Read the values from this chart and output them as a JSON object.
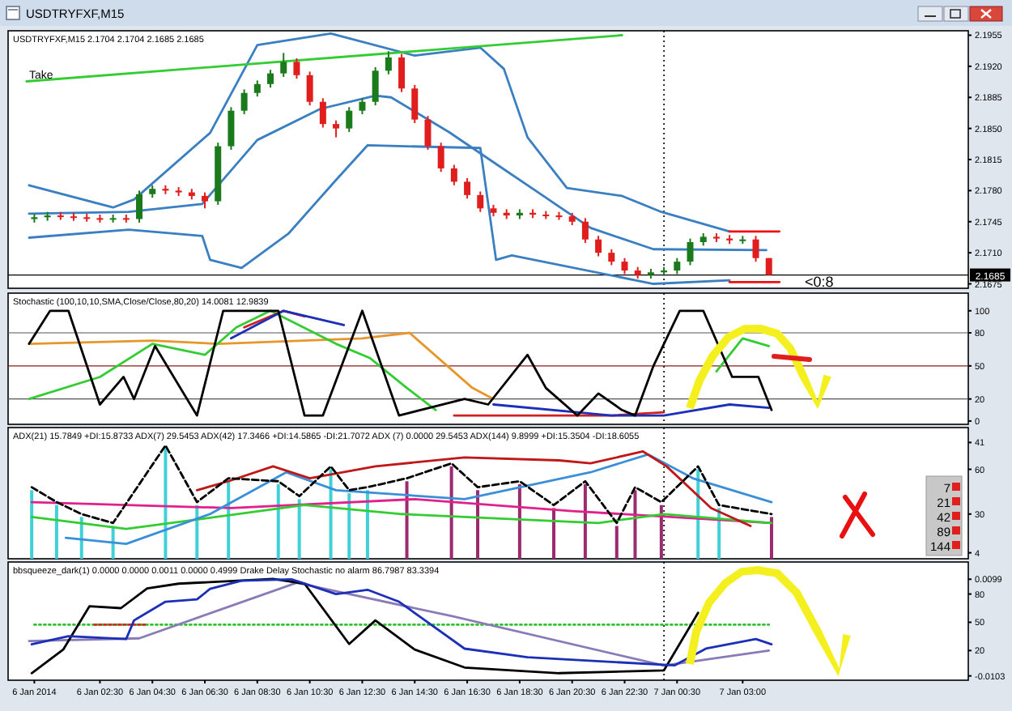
{
  "chart_data": [
    {
      "type": "candlestick",
      "title": "USDTRYFXF,M15",
      "subtitle": "USDTRYFXF,M15  2.1704 2.1704 2.1685 2.1685",
      "xlim": [
        "2014-01-05T23:00",
        "2014-01-07T11:36"
      ],
      "ylim": [
        2.167,
        2.196
      ],
      "tick_labels": "y",
      "yticks": [
        2.1955,
        {
          "value": 2.192,
          "label": "2.1920"
        },
        2.1885,
        {
          "value": 2.185,
          "label": "2.1850"
        },
        2.1815,
        {
          "value": 2.178,
          "label": "2.1780"
        },
        2.1745,
        {
          "value": 2.171,
          "label": "2.1710"
        },
        2.1675
      ],
      "x": [
        "2014-01-06T00:00",
        "2014-01-06T00:30",
        "2014-01-06T01:00",
        "2014-01-06T01:30",
        "2014-01-06T02:00",
        "2014-01-06T02:30",
        "2014-01-06T03:00",
        "2014-01-06T03:30",
        "2014-01-06T04:00",
        "2014-01-06T04:30",
        "2014-01-06T05:00",
        "2014-01-06T05:30",
        "2014-01-06T06:00",
        "2014-01-06T06:30",
        "2014-01-06T07:00",
        "2014-01-06T07:30",
        "2014-01-06T08:00",
        "2014-01-06T08:30",
        "2014-01-06T09:00",
        "2014-01-06T09:30",
        "2014-01-06T10:00",
        "2014-01-06T10:30",
        "2014-01-06T11:00",
        "2014-01-06T11:30",
        "2014-01-06T12:00",
        "2014-01-06T12:30",
        "2014-01-06T13:00",
        "2014-01-06T13:30",
        "2014-01-06T14:00",
        "2014-01-06T14:30",
        "2014-01-06T15:00",
        "2014-01-06T15:30",
        "2014-01-06T16:00",
        "2014-01-06T16:30",
        "2014-01-06T17:00",
        "2014-01-06T17:30",
        "2014-01-06T18:00",
        "2014-01-06T18:30",
        "2014-01-06T19:00",
        "2014-01-06T19:30",
        "2014-01-06T20:00",
        "2014-01-06T20:30",
        "2014-01-06T21:00",
        "2014-01-06T21:30",
        "2014-01-06T22:00",
        "2014-01-06T22:30",
        "2014-01-06T23:00",
        "2014-01-06T23:30",
        "2014-01-07T00:00",
        "2014-01-07T00:30",
        "2014-01-07T01:00",
        "2014-01-07T01:30",
        "2014-01-07T02:00",
        "2014-01-07T02:30",
        "2014-01-07T03:00",
        "2014-01-07T03:30",
        "2014-01-07T04:00"
      ],
      "ohlc": [
        [
          2.1748,
          2.1754,
          2.1744,
          2.175
        ],
        [
          2.175,
          2.1756,
          2.1746,
          2.1752
        ],
        [
          2.1752,
          2.1756,
          2.1747,
          2.1751
        ],
        [
          2.1751,
          2.1755,
          2.1746,
          2.175
        ],
        [
          2.175,
          2.1754,
          2.1745,
          2.1749
        ],
        [
          2.1749,
          2.1753,
          2.1744,
          2.1748
        ],
        [
          2.1748,
          2.1753,
          2.1744,
          2.1749
        ],
        [
          2.1749,
          2.1753,
          2.1744,
          2.1748
        ],
        [
          2.1748,
          2.178,
          2.1744,
          2.1776
        ],
        [
          2.1776,
          2.1786,
          2.1772,
          2.1782
        ],
        [
          2.1782,
          2.1786,
          2.1776,
          2.178
        ],
        [
          2.178,
          2.1784,
          2.1774,
          2.1778
        ],
        [
          2.1778,
          2.1782,
          2.177,
          2.1774
        ],
        [
          2.1774,
          2.1778,
          2.176,
          2.1768
        ],
        [
          2.1768,
          2.1834,
          2.1764,
          2.183
        ],
        [
          2.183,
          2.1874,
          2.1826,
          2.187
        ],
        [
          2.187,
          2.1894,
          2.1866,
          2.189
        ],
        [
          2.189,
          2.1904,
          2.1886,
          2.19
        ],
        [
          2.19,
          2.1916,
          2.1896,
          2.1912
        ],
        [
          2.1912,
          2.1935,
          2.1908,
          2.1925
        ],
        [
          2.1925,
          2.1929,
          2.1906,
          2.191
        ],
        [
          2.191,
          2.1914,
          2.1876,
          2.188
        ],
        [
          2.188,
          2.1884,
          2.1851,
          2.1855
        ],
        [
          2.1855,
          2.1859,
          2.184,
          2.185
        ],
        [
          2.185,
          2.1874,
          2.1846,
          2.187
        ],
        [
          2.187,
          2.1884,
          2.1866,
          2.188
        ],
        [
          2.188,
          2.1919,
          2.1876,
          2.1915
        ],
        [
          2.1915,
          2.1937,
          2.1911,
          2.193
        ],
        [
          2.193,
          2.1934,
          2.1891,
          2.1895
        ],
        [
          2.1895,
          2.1899,
          2.1856,
          2.186
        ],
        [
          2.186,
          2.1864,
          2.1826,
          2.183
        ],
        [
          2.183,
          2.1834,
          2.1801,
          2.1805
        ],
        [
          2.1805,
          2.1809,
          2.1786,
          2.179
        ],
        [
          2.179,
          2.1794,
          2.1771,
          2.1775
        ],
        [
          2.1775,
          2.1779,
          2.1756,
          2.176
        ],
        [
          2.176,
          2.1764,
          2.1751,
          2.1755
        ],
        [
          2.1755,
          2.1759,
          2.1748,
          2.1752
        ],
        [
          2.1752,
          2.1759,
          2.1748,
          2.1755
        ],
        [
          2.1755,
          2.1759,
          2.1749,
          2.1753
        ],
        [
          2.1753,
          2.1757,
          2.1748,
          2.1752
        ],
        [
          2.1752,
          2.1756,
          2.1747,
          2.1751
        ],
        [
          2.1751,
          2.1755,
          2.1741,
          2.1745
        ],
        [
          2.1745,
          2.1749,
          2.1721,
          2.1725
        ],
        [
          2.1725,
          2.1729,
          2.1706,
          2.171
        ],
        [
          2.171,
          2.1714,
          2.1696,
          2.17
        ],
        [
          2.17,
          2.1704,
          2.1686,
          2.169
        ],
        [
          2.169,
          2.1694,
          2.1681,
          2.1685
        ],
        [
          2.1685,
          2.1692,
          2.1681,
          2.1688
        ],
        [
          2.1688,
          2.1694,
          2.1684,
          2.169
        ],
        [
          2.169,
          2.1704,
          2.1686,
          2.17
        ],
        [
          2.17,
          2.1726,
          2.1696,
          2.1722
        ],
        [
          2.1722,
          2.1732,
          2.1718,
          2.1728
        ],
        [
          2.1728,
          2.1732,
          2.1722,
          2.1726
        ],
        [
          2.1726,
          2.173,
          2.172,
          2.1724
        ],
        [
          2.1724,
          2.1729,
          2.172,
          2.1725
        ],
        [
          2.1725,
          2.1729,
          2.17,
          2.1704
        ],
        [
          2.1704,
          2.1704,
          2.1685,
          2.1685
        ]
      ],
      "series": [
        {
          "type": "line",
          "color": "#3a7fc1",
          "x": [
            "2014-01-05T23:48",
            "2014-01-06T03:00",
            "2014-01-06T03:48",
            "2014-01-06T06:42",
            "2014-01-06T08:30",
            "2014-01-06T11:18",
            "2014-01-06T14:30",
            "2014-01-06T17:00",
            "2014-01-06T17:54",
            "2014-01-06T18:48",
            "2014-01-06T20:18",
            "2014-01-06T22:24",
            "2014-01-06T23:54",
            "2014-01-07T02:30"
          ],
          "values": [
            2.1786,
            2.1761,
            2.177,
            2.1845,
            2.1944,
            2.1957,
            2.1932,
            2.1941,
            2.1917,
            2.184,
            2.1783,
            2.1774,
            2.1756,
            2.1734
          ]
        },
        {
          "type": "line",
          "color": "#3a7fc1",
          "x": [
            "2014-01-05T23:48",
            "2014-01-06T03:36",
            "2014-01-06T06:24",
            "2014-01-06T08:30",
            "2014-01-06T10:54",
            "2014-01-06T13:00",
            "2014-01-06T13:36",
            "2014-01-06T15:48",
            "2014-01-06T17:36",
            "2014-01-06T19:24",
            "2014-01-06T21:12",
            "2014-01-06T23:36",
            "2014-01-07T03:54"
          ],
          "values": [
            2.1754,
            2.1756,
            2.1765,
            2.1837,
            2.1872,
            2.1887,
            2.1885,
            2.1846,
            2.181,
            2.1774,
            2.1738,
            2.1714,
            2.1713
          ]
        },
        {
          "type": "line",
          "color": "#3a7fc1",
          "x": [
            "2014-01-05T23:48",
            "2014-01-06T03:36",
            "2014-01-06T06:24",
            "2014-01-06T06:42",
            "2014-01-06T07:54",
            "2014-01-06T09:42",
            "2014-01-06T11:30",
            "2014-01-06T12:42",
            "2014-01-06T17:00",
            "2014-01-06T17:36",
            "2014-01-06T18:12",
            "2014-01-06T23:36",
            "2014-01-07T02:30"
          ],
          "values": [
            2.1727,
            2.1736,
            2.1729,
            2.1702,
            2.1693,
            2.1732,
            2.1792,
            2.1831,
            2.1828,
            2.1702,
            2.1707,
            2.1675,
            2.1679
          ]
        },
        {
          "type": "line",
          "color": "#33cc33",
          "x": [
            "2014-01-05T23:42",
            "2014-01-06T22:24"
          ],
          "values": [
            2.1903,
            2.1955
          ]
        },
        {
          "type": "line",
          "color": "#ee1111",
          "x": [
            "2014-01-07T02:30",
            "2014-01-07T04:24"
          ],
          "values": [
            2.1734,
            2.1734
          ]
        },
        {
          "type": "line",
          "color": "#ee1111",
          "x": [
            "2014-01-07T02:30",
            "2014-01-07T04:24"
          ],
          "values": [
            2.1677,
            2.1677
          ]
        }
      ],
      "ref_lines": [
        {
          "axis": "x",
          "value": "2014-01-07T00:00",
          "color": "#000000",
          "line_style": "dotted"
        },
        {
          "axis": "y",
          "value": 2.1685,
          "label": "2.1685",
          "color": "#000000",
          "line_style": "solid"
        }
      ],
      "annotations": [
        {
          "text": "Take",
          "x": "2014-01-05T23:48",
          "y": 2.1903
        },
        "<0:8"
      ]
    },
    {
      "type": "line",
      "title": "Stochastic (100,10,10,SMA,Close/Close,80,20) 14.0081 12.9839",
      "xlim": [
        "2014-01-05T23:00",
        "2014-01-07T11:36"
      ],
      "ylim": [
        -3,
        116
      ],
      "tick_labels": "y",
      "yticks": [
        0,
        20,
        50,
        80,
        100
      ],
      "series": [
        {
          "color": "#e8962a",
          "x": [
            "2014-01-05T23:48",
            "2014-01-06T04:30",
            "2014-01-06T07:00",
            "2014-01-06T12:30",
            "2014-01-06T14:18",
            "2014-01-06T16:42",
            "2014-01-06T17:30"
          ],
          "values": [
            70,
            73,
            70,
            75,
            80,
            30,
            20
          ]
        },
        {
          "color": "#33cc33",
          "x": [
            "2014-01-05T23:48",
            "2014-01-06T02:30",
            "2014-01-06T04:30",
            "2014-01-06T06:30",
            "2014-01-06T07:42",
            "2014-01-06T09:00",
            "2014-01-06T11:30",
            "2014-01-06T12:48",
            "2014-01-06T14:12",
            "2014-01-06T15:18",
            "2014-01-06T20:00",
            "2014-01-07T01:00",
            "2014-01-07T02:00",
            "2014-01-07T03:00",
            "2014-01-07T04:00"
          ],
          "values": [
            20,
            40,
            70,
            60,
            85,
            100,
            70,
            57,
            30,
            10,
            null,
            null,
            45,
            75,
            68
          ]
        },
        {
          "color": "#d02020",
          "x": [
            "2014-01-06T08:00",
            "2014-01-06T09:30",
            "2014-01-06T10:18",
            "2014-01-06T11:00",
            "2014-01-06T16:00",
            "2014-01-06T19:00",
            "2014-01-06T22:00",
            "2014-01-07T00:00"
          ],
          "values": [
            85,
            100,
            95,
            null,
            5,
            5,
            5,
            8
          ]
        },
        {
          "color": "#1c2fb8",
          "x": [
            "2014-01-06T07:30",
            "2014-01-06T09:30",
            "2014-01-06T11:48",
            "2014-01-06T14:00",
            "2014-01-06T17:30",
            "2014-01-06T22:00",
            "2014-01-07T00:00",
            "2014-01-07T02:30",
            "2014-01-07T04:00"
          ],
          "values": [
            75,
            100,
            87,
            null,
            15,
            5,
            5,
            15,
            12
          ]
        },
        {
          "color": "#000000",
          "x": [
            "2014-01-05T23:48",
            "2014-01-06T00:36",
            "2014-01-06T01:18",
            "2014-01-06T02:30",
            "2014-01-06T03:24",
            "2014-01-06T03:48",
            "2014-01-06T04:36",
            "2014-01-06T06:12",
            "2014-01-06T07:12",
            "2014-01-06T09:18",
            "2014-01-06T10:18",
            "2014-01-06T11:00",
            "2014-01-06T12:30",
            "2014-01-06T13:54",
            "2014-01-06T16:24",
            "2014-01-06T17:18",
            "2014-01-06T18:48",
            "2014-01-06T19:30",
            "2014-01-06T20:42",
            "2014-01-06T21:30",
            "2014-01-06T22:24",
            "2014-01-06T22:54",
            "2014-01-06T23:36",
            "2014-01-07T00:36",
            "2014-01-07T01:30",
            "2014-01-07T02:36",
            "2014-01-07T03:36",
            "2014-01-07T04:06"
          ],
          "values": [
            70,
            100,
            100,
            15,
            40,
            20,
            68,
            5,
            100,
            100,
            5,
            5,
            100,
            5,
            20,
            15,
            60,
            30,
            5,
            25,
            10,
            5,
            50,
            100,
            100,
            40,
            40,
            10
          ]
        }
      ],
      "ref_lines": [
        {
          "axis": "y",
          "value": 80,
          "color": "#555555",
          "line_style": "solid"
        },
        {
          "axis": "y",
          "value": 50,
          "color": "#8b1a1a",
          "line_style": "solid"
        },
        {
          "axis": "y",
          "value": 20,
          "color": "#555555",
          "line_style": "solid"
        },
        {
          "axis": "x",
          "value": "2014-01-07T00:00",
          "color": "#000000",
          "line_style": "dotted"
        }
      ]
    },
    {
      "type": "line",
      "title": "ADX(21) 15.7849 +DI:15.8733   ADX(7) 29.5453   ADX(42) 17.3466 +DI:14.5865 -DI:21.7072   ADX (7) 0.0000 29.5453   ADX(144) 9.8999 +DI:15.3504 -DI:18.6055",
      "xlim": [
        "2014-01-05T23:00",
        "2014-01-07T11:36"
      ],
      "ylim": [
        2,
        46
      ],
      "tick_labels": "y",
      "yticks": [
        4,
        41
      ],
      "y2lim": [
        0,
        88
      ],
      "y2ticks": [
        30,
        60
      ],
      "series": [
        {
          "type": "bar",
          "x": [
            "2014-01-05T23:54",
            "2014-01-06T00:51",
            "2014-01-06T01:48",
            "2014-01-06T03:00",
            "2014-01-06T05:00",
            "2014-01-06T06:12",
            "2014-01-06T07:24",
            "2014-01-06T09:18",
            "2014-01-06T10:06",
            "2014-01-06T11:18",
            "2014-01-06T12:00",
            "2014-01-06T12:42",
            "2014-01-06T14:12",
            "2014-01-06T15:54",
            "2014-01-06T16:54",
            "2014-01-06T18:30",
            "2014-01-06T19:48",
            "2014-01-06T21:00",
            "2014-01-06T22:12",
            "2014-01-06T22:54",
            "2014-01-06T23:54",
            "2014-01-07T01:18",
            "2014-01-07T02:06",
            "2014-01-07T04:06"
          ],
          "values": [
            25,
            20,
            16,
            13,
            39,
            20,
            28,
            27,
            22,
            32,
            24,
            25,
            28,
            33,
            25,
            27,
            19,
            27,
            13,
            25,
            20,
            32,
            19,
            16
          ],
          "colors": [
            "#40d0d8",
            "#40d0d8",
            "#40d0d8",
            "#40d0d8",
            "#40d0d8",
            "#40d0d8",
            "#40d0d8",
            "#40d0d8",
            "#40d0d8",
            "#40d0d8",
            "#40d0d8",
            "#40d0d8",
            "#9c2a6e",
            "#9c2a6e",
            "#9c2a6e",
            "#9c2a6e",
            "#9c2a6e",
            "#9c2a6e",
            "#9c2a6e",
            "#9c2a6e",
            "#9c2a6e",
            "#40d0d8",
            "#40d0d8",
            "#9c2a6e"
          ]
        },
        {
          "color": "#e0208c",
          "x": [
            "2014-01-05T23:54",
            "2014-01-06T07:30",
            "2014-01-06T14:30",
            "2014-01-06T20:30",
            "2014-01-07T04:06"
          ],
          "values": [
            21,
            19,
            22,
            18,
            14
          ]
        },
        {
          "color": "#33cc33",
          "x": [
            "2014-01-05T23:54",
            "2014-01-06T03:30",
            "2014-01-06T10:18",
            "2014-01-06T14:00",
            "2014-01-06T21:30",
            "2014-01-07T00:00",
            "2014-01-07T04:06"
          ],
          "values": [
            16,
            12,
            20,
            17,
            14,
            17,
            14
          ]
        },
        {
          "color": "#3a8fd8",
          "axis": "y2",
          "x": [
            "2014-01-06T01:12",
            "2014-01-06T03:30",
            "2014-01-06T06:42",
            "2014-01-06T09:36",
            "2014-01-06T11:30",
            "2014-01-06T16:24",
            "2014-01-06T21:12",
            "2014-01-06T23:24",
            "2014-01-07T01:06",
            "2014-01-07T04:06"
          ],
          "values": [
            14,
            10,
            30,
            58,
            46,
            40,
            58,
            70,
            54,
            38
          ]
        },
        {
          "color": "#c01818",
          "axis": "y2",
          "x": [
            "2014-01-06T06:12",
            "2014-01-06T07:24",
            "2014-01-06T09:06",
            "2014-01-06T10:30",
            "2014-01-06T13:00",
            "2014-01-06T16:24",
            "2014-01-06T20:00",
            "2014-01-06T21:12",
            "2014-01-06T23:12",
            "2014-01-07T00:06",
            "2014-01-07T01:48",
            "2014-01-07T03:18"
          ],
          "values": [
            46,
            52,
            62,
            54,
            62,
            68,
            66,
            64,
            72,
            62,
            34,
            22
          ]
        },
        {
          "color": "#000000",
          "line_style": "dashed",
          "x": [
            "2014-01-05T23:54",
            "2014-01-06T00:51",
            "2014-01-06T01:48",
            "2014-01-06T03:00",
            "2014-01-06T05:00",
            "2014-01-06T06:12",
            "2014-01-06T07:24",
            "2014-01-06T09:18",
            "2014-01-06T10:06",
            "2014-01-06T11:18",
            "2014-01-06T12:00",
            "2014-01-06T12:42",
            "2014-01-06T14:12",
            "2014-01-06T15:54",
            "2014-01-06T16:54",
            "2014-01-06T18:30",
            "2014-01-06T19:48",
            "2014-01-06T21:00",
            "2014-01-06T22:12",
            "2014-01-06T22:54",
            "2014-01-06T23:54",
            "2014-01-07T01:18",
            "2014-01-07T02:06",
            "2014-01-07T04:06"
          ],
          "values": [
            26,
            21,
            17,
            14,
            40,
            21,
            29,
            28,
            23,
            33,
            25,
            26,
            29,
            34,
            26,
            28,
            20,
            28,
            14,
            26,
            21,
            33,
            20,
            17
          ]
        }
      ],
      "ref_lines": [
        {
          "axis": "x",
          "value": "2014-01-07T00:00",
          "color": "#000000",
          "line_style": "dotted"
        }
      ],
      "annotations": [
        "7",
        "21",
        "42",
        "89",
        "144"
      ]
    },
    {
      "type": "line",
      "title": "bbsqueeze_dark(1) 0.0000 0.0000 0.0011 0.0000 0.4999   Drake Delay Stochastic no alarm 86.7987 83.3394",
      "xlim": [
        "2014-01-05T23:00",
        "2014-01-07T11:36"
      ],
      "ylim": [
        -0.0112,
        0.0135
      ],
      "yticks": [
        -0.0103,
        0.0099
      ],
      "y2lim": [
        -11.5,
        114
      ],
      "y2ticks": [
        20,
        50,
        80
      ],
      "xticks": [
        {
          "value": "2014-01-06T00:00",
          "label": "6 Jan 2014"
        },
        {
          "value": "2014-01-06T02:30",
          "label": "6 Jan 02:30"
        },
        {
          "value": "2014-01-06T04:30",
          "label": "6 Jan 04:30"
        },
        {
          "value": "2014-01-06T06:30",
          "label": "6 Jan 06:30"
        },
        {
          "value": "2014-01-06T08:30",
          "label": "6 Jan 08:30"
        },
        {
          "value": "2014-01-06T10:30",
          "label": "6 Jan 10:30"
        },
        {
          "value": "2014-01-06T12:30",
          "label": "6 Jan 12:30"
        },
        {
          "value": "2014-01-06T14:30",
          "label": "6 Jan 14:30"
        },
        {
          "value": "2014-01-06T16:30",
          "label": "6 Jan 16:30"
        },
        {
          "value": "2014-01-06T18:30",
          "label": "6 Jan 18:30"
        },
        {
          "value": "2014-01-06T20:30",
          "label": "6 Jan 20:30"
        },
        {
          "value": "2014-01-06T22:30",
          "label": "6 Jan 22:30"
        },
        {
          "value": "2014-01-07T00:30",
          "label": "7 Jan 00:30"
        },
        {
          "value": "2014-01-07T03:00",
          "label": "7 Jan 03:00"
        }
      ],
      "series": [
        {
          "color": "#30c030",
          "line_style": "dotted",
          "x": [
            "2014-01-06T00:00",
            "2014-01-07T04:00"
          ],
          "values": [
            0.0004,
            0.0004
          ]
        },
        {
          "color": "#e02020",
          "line_style": "dotted",
          "x": [
            "2014-01-06T02:18",
            "2014-01-06T04:18"
          ],
          "values": [
            0.0004,
            0.0004
          ]
        },
        {
          "color": "#8a7ab8",
          "axis": "y2",
          "x": [
            "2014-01-05T23:48",
            "2014-01-06T04:00",
            "2014-01-06T10:00",
            "2014-01-06T16:00",
            "2014-01-07T00:00",
            "2014-01-07T04:00"
          ],
          "values": [
            30,
            33,
            92,
            56,
            4,
            20
          ]
        },
        {
          "color": "#000000",
          "axis": "y2",
          "x": [
            "2014-01-05T23:54",
            "2014-01-06T01:06",
            "2014-01-06T02:06",
            "2014-01-06T03:18",
            "2014-01-06T04:18",
            "2014-01-06T05:30",
            "2014-01-06T09:06",
            "2014-01-06T10:18",
            "2014-01-06T12:00",
            "2014-01-06T13:00",
            "2014-01-06T14:30",
            "2014-01-06T16:24",
            "2014-01-06T20:00",
            "2014-01-07T00:00",
            "2014-01-07T01:18"
          ],
          "values": [
            -4,
            21,
            67,
            65,
            86,
            91,
            96,
            91,
            27,
            52,
            21,
            2,
            -4,
            -1,
            60
          ]
        },
        {
          "color": "#1c2fb8",
          "x": [
            "2014-01-05T23:54",
            "2014-01-06T01:18",
            "2014-01-06T03:30",
            "2014-01-06T03:48",
            "2014-01-06T05:00",
            "2014-01-06T06:12",
            "2014-01-06T06:42",
            "2014-01-06T07:54",
            "2014-01-06T09:48",
            "2014-01-06T10:18",
            "2014-01-06T11:30",
            "2014-01-06T12:42",
            "2014-01-06T13:54",
            "2014-01-06T16:24",
            "2014-01-06T18:48",
            "2014-01-07T00:24",
            "2014-01-07T01:36",
            "2014-01-07T03:30",
            "2014-01-07T04:06"
          ],
          "values": [
            -0.0037,
            -0.002,
            -0.0026,
            0.0013,
            0.0052,
            0.0057,
            0.0079,
            0.0096,
            0.0099,
            0.009,
            0.0068,
            0.0077,
            0.0052,
            -0.0046,
            -0.0064,
            -0.0081,
            -0.0046,
            -0.0026,
            -0.0037
          ]
        }
      ],
      "ref_lines": [
        {
          "axis": "x",
          "value": "2014-01-07T00:00",
          "color": "#000000",
          "line_style": "dotted"
        }
      ]
    }
  ]
}
